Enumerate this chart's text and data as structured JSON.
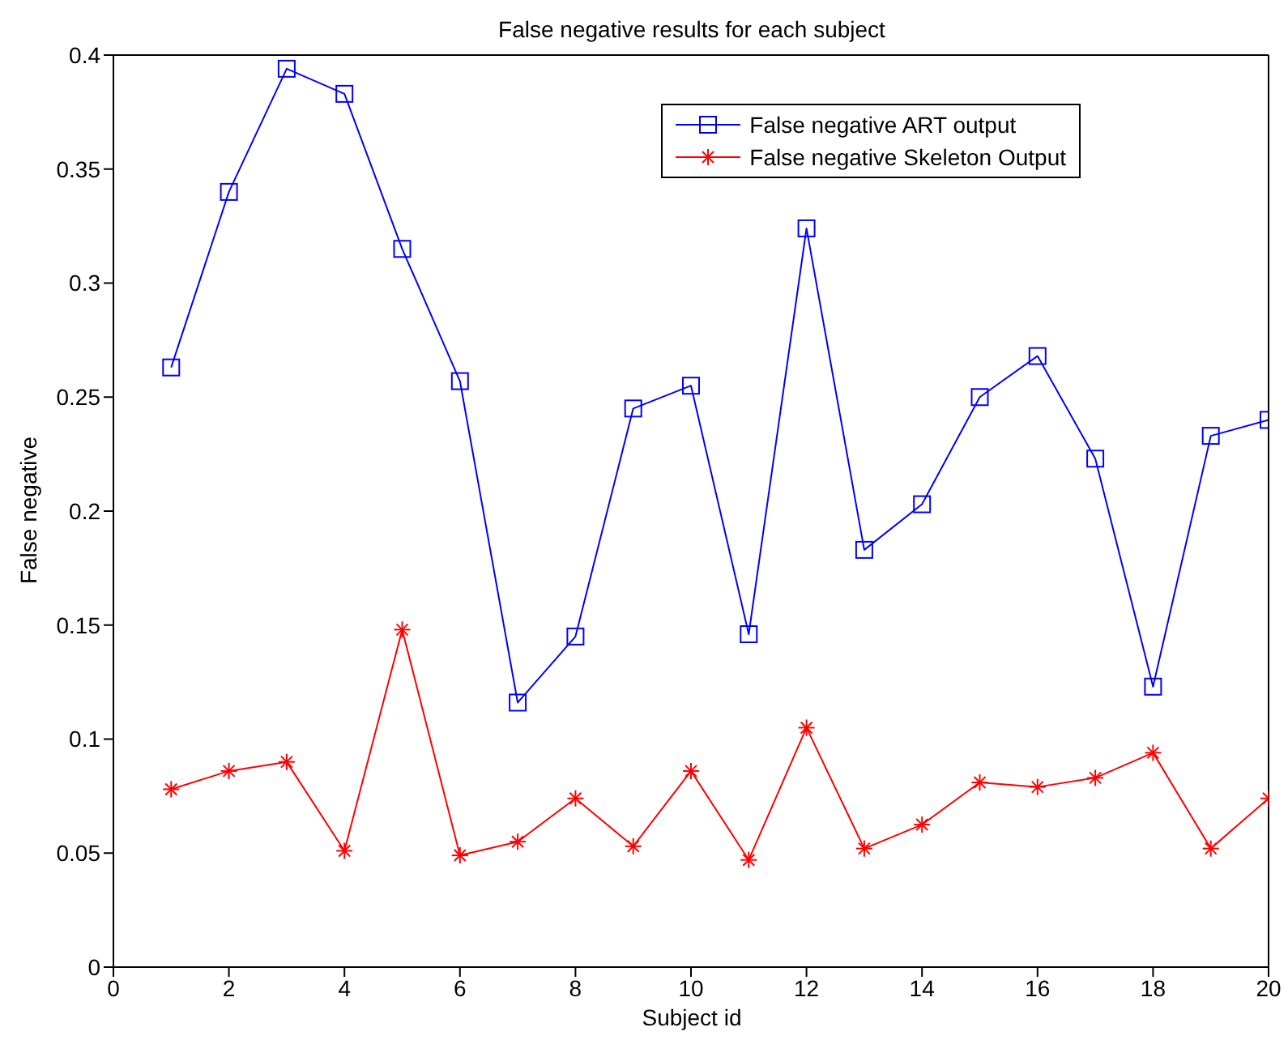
{
  "chart_data": {
    "type": "line",
    "title": "False negative results for each subject",
    "xlabel": "Subject id",
    "ylabel": "False negative",
    "x": [
      1,
      2,
      3,
      4,
      5,
      6,
      7,
      8,
      9,
      10,
      11,
      12,
      13,
      14,
      15,
      16,
      17,
      18,
      19,
      20
    ],
    "series": [
      {
        "name": "False negative ART output",
        "color": "#0000ff",
        "marker": "square",
        "values": [
          0.263,
          0.34,
          0.394,
          0.383,
          0.315,
          0.257,
          0.116,
          0.145,
          0.245,
          0.255,
          0.146,
          0.324,
          0.183,
          0.203,
          0.25,
          0.268,
          0.223,
          0.123,
          0.233,
          0.24
        ]
      },
      {
        "name": "False negative Skeleton Output",
        "color": "#ff0000",
        "marker": "cross",
        "values": [
          0.078,
          0.086,
          0.09,
          0.051,
          0.148,
          0.049,
          0.055,
          0.074,
          0.053,
          0.086,
          0.047,
          0.105,
          0.052,
          0.0625,
          0.081,
          0.079,
          0.083,
          0.094,
          0.052,
          0.074
        ]
      }
    ],
    "xlim": [
      0,
      20
    ],
    "xticks": [
      0,
      2,
      4,
      6,
      8,
      10,
      12,
      14,
      16,
      18,
      20
    ],
    "ylim": [
      0,
      0.4
    ],
    "yticks": [
      0,
      0.05,
      0.1,
      0.15,
      0.2,
      0.25,
      0.3,
      0.35,
      0.4
    ],
    "grid": false,
    "legend": "top right",
    "line_style": "solid"
  }
}
